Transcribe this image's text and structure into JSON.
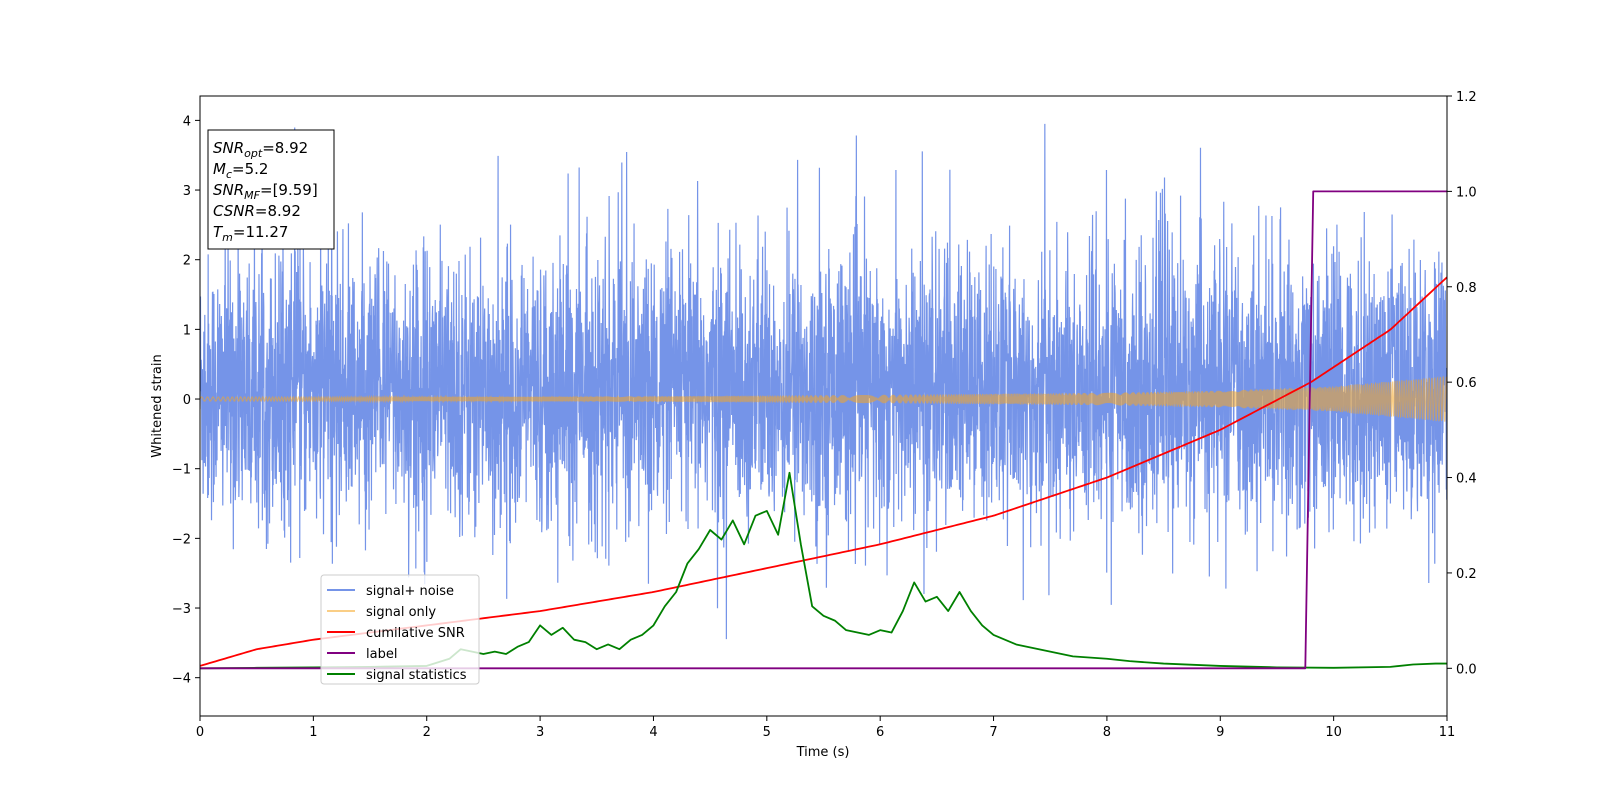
{
  "chart_data": {
    "type": "line",
    "xlabel": "Time (s)",
    "ylabel": "Whitened strain",
    "xlim": [
      0,
      11
    ],
    "ylim_left": [
      -4.55,
      4.35
    ],
    "ylim_right": [
      -0.1,
      1.2
    ],
    "x_ticks": [
      0,
      1,
      2,
      3,
      4,
      5,
      6,
      7,
      8,
      9,
      10,
      11
    ],
    "y_left_ticks": [
      -4,
      -3,
      -2,
      -1,
      0,
      1,
      2,
      3,
      4
    ],
    "y_left_tick_labels": [
      "−4",
      "−3",
      "−2",
      "−1",
      "0",
      "1",
      "2",
      "3",
      "4"
    ],
    "y_right_ticks": [
      0.0,
      0.2,
      0.4,
      0.6,
      0.8,
      1.0,
      1.2
    ],
    "y_right_tick_labels": [
      "0.0",
      "0.2",
      "0.4",
      "0.6",
      "0.8",
      "1.0",
      "1.2"
    ],
    "legend_position": "lower-left",
    "series": [
      {
        "name": "signal+ noise",
        "axis": "left",
        "color": "#6688e6",
        "style": "dense noise band",
        "approx_range": [
          -4.15,
          3.95
        ],
        "typical_band": [
          -1.6,
          2.4
        ]
      },
      {
        "name": "signal only",
        "axis": "left",
        "color": "#f5a623",
        "style": "chirp with growing envelope",
        "envelope_x": [
          0,
          2,
          4,
          6,
          8,
          9,
          10,
          11
        ],
        "envelope_y": [
          0.03,
          0.03,
          0.04,
          0.06,
          0.09,
          0.12,
          0.18,
          0.33
        ]
      },
      {
        "name": "cumilative SNR",
        "axis": "right",
        "color": "#ff0000",
        "x": [
          0,
          0.5,
          1,
          2,
          3,
          4,
          5,
          6,
          7,
          8,
          9,
          9.8,
          10.5,
          11
        ],
        "y": [
          0.005,
          0.04,
          0.06,
          0.09,
          0.12,
          0.16,
          0.21,
          0.26,
          0.32,
          0.4,
          0.5,
          0.6,
          0.71,
          0.82
        ]
      },
      {
        "name": "label",
        "axis": "right",
        "color": "#800080",
        "x": [
          0,
          9.75,
          9.82,
          11
        ],
        "y": [
          0.0,
          0.0,
          1.0,
          1.0
        ]
      },
      {
        "name": "signal statistics",
        "axis": "right",
        "color": "#008000",
        "x": [
          0,
          0.5,
          1,
          1.5,
          2,
          2.2,
          2.3,
          2.5,
          2.6,
          2.7,
          2.8,
          2.9,
          3.0,
          3.1,
          3.2,
          3.3,
          3.4,
          3.5,
          3.6,
          3.7,
          3.8,
          3.9,
          4.0,
          4.1,
          4.2,
          4.3,
          4.4,
          4.5,
          4.6,
          4.7,
          4.8,
          4.9,
          5.0,
          5.1,
          5.2,
          5.3,
          5.4,
          5.5,
          5.6,
          5.7,
          5.8,
          5.9,
          6.0,
          6.1,
          6.2,
          6.3,
          6.4,
          6.5,
          6.6,
          6.7,
          6.8,
          6.9,
          7.0,
          7.1,
          7.2,
          7.3,
          7.4,
          7.5,
          7.6,
          7.7,
          8.0,
          8.2,
          8.5,
          9.0,
          9.5,
          10.0,
          10.5,
          10.7,
          10.9,
          11
        ],
        "y": [
          0.0,
          0.001,
          0.002,
          0.003,
          0.005,
          0.02,
          0.04,
          0.03,
          0.035,
          0.03,
          0.045,
          0.055,
          0.09,
          0.07,
          0.085,
          0.06,
          0.055,
          0.04,
          0.05,
          0.04,
          0.06,
          0.07,
          0.09,
          0.13,
          0.16,
          0.22,
          0.25,
          0.29,
          0.27,
          0.31,
          0.26,
          0.32,
          0.33,
          0.28,
          0.41,
          0.26,
          0.13,
          0.11,
          0.1,
          0.08,
          0.075,
          0.07,
          0.08,
          0.075,
          0.12,
          0.18,
          0.14,
          0.15,
          0.12,
          0.16,
          0.12,
          0.09,
          0.07,
          0.06,
          0.05,
          0.045,
          0.04,
          0.035,
          0.03,
          0.025,
          0.02,
          0.015,
          0.01,
          0.005,
          0.002,
          0.001,
          0.003,
          0.008,
          0.01,
          0.01
        ]
      }
    ],
    "annotations": [
      {
        "label": "SNR",
        "sub": "opt",
        "value": "=8.92"
      },
      {
        "label": "M",
        "sub": "c",
        "value": "=5.2"
      },
      {
        "label": "SNR",
        "sub": "MF",
        "value": "=[9.59]"
      },
      {
        "label": "CSNR",
        "sub": "",
        "value": "=8.92"
      },
      {
        "label": "T",
        "sub": "m",
        "value": "=11.27"
      }
    ]
  }
}
